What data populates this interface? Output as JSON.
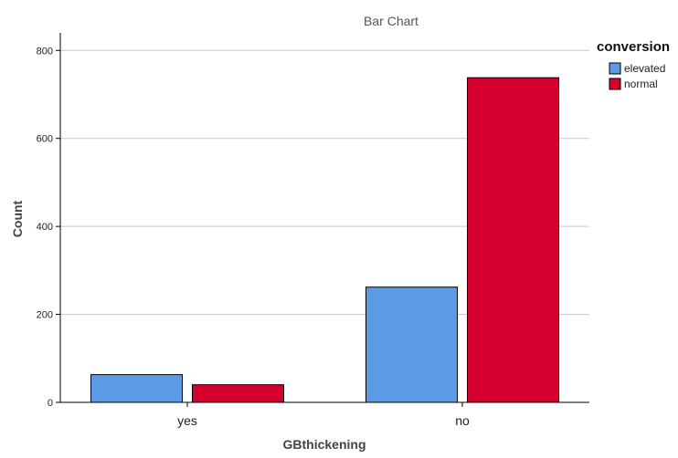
{
  "chart_data": {
    "type": "bar",
    "title": "Bar Chart",
    "xlabel": "GBthickening",
    "ylabel": "Count",
    "categories": [
      "yes",
      "no"
    ],
    "series": [
      {
        "name": "elevated",
        "color": "#5b9be6",
        "values": [
          63,
          262
        ]
      },
      {
        "name": "normal",
        "color": "#d6002f",
        "values": [
          40,
          738
        ]
      }
    ],
    "ylim": [
      0,
      840
    ],
    "yticks": [
      0,
      200,
      400,
      600,
      800
    ],
    "grid": true,
    "legend": {
      "title": "conversion",
      "placement": "top-right"
    }
  }
}
